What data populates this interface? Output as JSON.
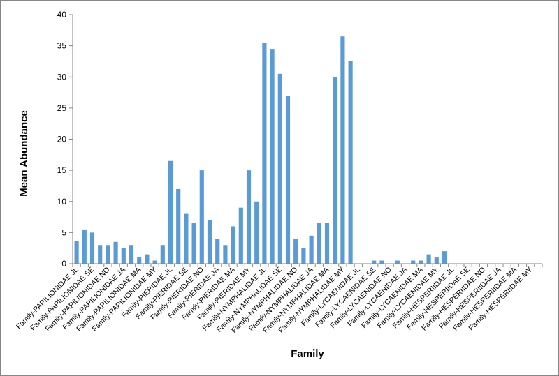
{
  "chart_data": {
    "type": "bar",
    "title": "",
    "xlabel": "Family",
    "ylabel": "Mean Abundance",
    "ylim": [
      0,
      40
    ],
    "yticks": [
      0,
      5,
      10,
      15,
      20,
      25,
      30,
      35,
      40
    ],
    "grid": false,
    "legend": "none",
    "bar_color": "#5B9BD5",
    "categories": [
      "Family-PAPILIONIDAE JL",
      "",
      "Family-PAPILIONIDAE SE",
      "",
      "Family-PAPILIONIDAE NO",
      "",
      "Family-PAPILIONIDAE JA",
      "",
      "Family-PAPILIONIDAE MA",
      "",
      "Family-PAPILIONIDAE MY",
      "",
      "Family-PIERIDAE JL",
      "",
      "Family-PIERIDAE SE",
      "",
      "Family-PIERIDAE NO",
      "",
      "Family-PIERIDAE JA",
      "",
      "Family-PIERIDAE MA",
      "",
      "Family-PIERIDAE MY",
      "",
      "Family-NYMPHALIDAE JL",
      "",
      "Family-NYMPHALIDAE SE",
      "",
      "Family-NYMPHALIDAE NO",
      "",
      "Family-NYMPHALIDAE JA",
      "",
      "Family-NYMPHALIDAE MA",
      "",
      "Family-NYMPHALIDAE MY",
      "",
      "Family-LYCAENIDAE JL",
      "",
      "Family-LYCAENIDAE SE",
      "",
      "Family-LYCAENIDAE NO",
      "",
      "Family-LYCAENIDAE JA",
      "",
      "Family-LYCAENIDAE MA",
      "",
      "Family-LYCAENIDAE MY",
      "",
      "Family-HESPERIIDAE JL",
      "",
      "Family-HESPERIIDAE SE",
      "",
      "Family-HESPERIIDAE NO",
      "",
      "Family-HESPERIIDAE JA",
      "",
      "Family-HESPERIIDAE MA",
      "",
      "Family-HESPERIIDAE MY",
      ""
    ],
    "values": [
      3.6,
      5.5,
      5.0,
      3.0,
      3.0,
      3.5,
      2.5,
      3.0,
      1.0,
      1.5,
      0.5,
      3.0,
      16.5,
      12.0,
      8.0,
      6.5,
      15.0,
      7.0,
      4.0,
      3.0,
      6.0,
      9.0,
      15.0,
      10.0,
      35.5,
      34.5,
      30.5,
      27.0,
      4.0,
      2.5,
      4.5,
      6.5,
      6.5,
      30.0,
      36.5,
      32.5,
      0,
      0,
      0.5,
      0.5,
      0,
      0.5,
      0,
      0.5,
      0.5,
      1.5,
      1.0,
      2.0,
      0,
      0,
      0,
      0,
      0,
      0,
      0,
      0,
      0,
      0,
      0,
      0
    ]
  }
}
